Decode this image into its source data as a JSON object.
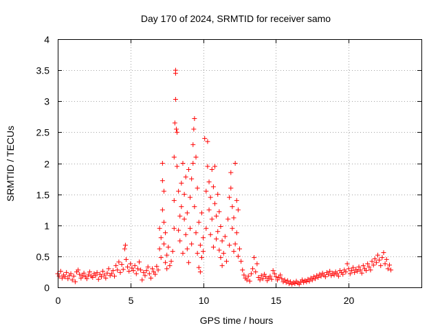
{
  "chart_data": {
    "type": "scatter",
    "title": "Day 170 of 2024, SRMTID for receiver samo",
    "xlabel": "GPS time / hours",
    "ylabel": "SRMTID / TECUs",
    "xlim": [
      0,
      25
    ],
    "ylim": [
      0,
      4
    ],
    "x_ticks": [
      0,
      5,
      10,
      15,
      20
    ],
    "x_tick_labels": [
      "0",
      "5",
      "10",
      "15",
      "20"
    ],
    "y_ticks": [
      0,
      0.5,
      1,
      1.5,
      2,
      2.5,
      3,
      3.5,
      4
    ],
    "y_tick_labels": [
      "0",
      "0.5",
      "1",
      "1.5",
      "2",
      "2.5",
      "3",
      "3.5",
      "4"
    ],
    "grid": true,
    "marker": "+",
    "color": "#ff0000",
    "series": [
      {
        "name": "SRMTID",
        "points": [
          [
            0.0,
            0.22
          ],
          [
            0.1,
            0.18
          ],
          [
            0.2,
            0.26
          ],
          [
            0.3,
            0.15
          ],
          [
            0.4,
            0.2
          ],
          [
            0.5,
            0.17
          ],
          [
            0.6,
            0.24
          ],
          [
            0.7,
            0.14
          ],
          [
            0.8,
            0.19
          ],
          [
            0.9,
            0.22
          ],
          [
            1.0,
            0.12
          ],
          [
            1.1,
            0.18
          ],
          [
            1.2,
            0.09
          ],
          [
            1.3,
            0.25
          ],
          [
            1.4,
            0.28
          ],
          [
            1.5,
            0.21
          ],
          [
            1.6,
            0.15
          ],
          [
            1.7,
            0.19
          ],
          [
            1.8,
            0.23
          ],
          [
            1.9,
            0.17
          ],
          [
            2.0,
            0.14
          ],
          [
            2.1,
            0.2
          ],
          [
            2.2,
            0.25
          ],
          [
            2.3,
            0.18
          ],
          [
            2.4,
            0.16
          ],
          [
            2.5,
            0.22
          ],
          [
            2.6,
            0.19
          ],
          [
            2.7,
            0.24
          ],
          [
            2.8,
            0.13
          ],
          [
            2.9,
            0.21
          ],
          [
            3.0,
            0.17
          ],
          [
            3.1,
            0.26
          ],
          [
            3.2,
            0.2
          ],
          [
            3.3,
            0.15
          ],
          [
            3.4,
            0.23
          ],
          [
            3.5,
            0.3
          ],
          [
            3.6,
            0.19
          ],
          [
            3.7,
            0.22
          ],
          [
            3.8,
            0.27
          ],
          [
            3.9,
            0.18
          ],
          [
            4.0,
            0.35
          ],
          [
            4.1,
            0.28
          ],
          [
            4.2,
            0.41
          ],
          [
            4.3,
            0.24
          ],
          [
            4.4,
            0.37
          ],
          [
            4.5,
            0.29
          ],
          [
            4.6,
            0.62
          ],
          [
            4.65,
            0.68
          ],
          [
            4.7,
            0.45
          ],
          [
            4.8,
            0.33
          ],
          [
            4.9,
            0.26
          ],
          [
            5.0,
            0.38
          ],
          [
            5.1,
            0.31
          ],
          [
            5.2,
            0.27
          ],
          [
            5.3,
            0.35
          ],
          [
            5.4,
            0.22
          ],
          [
            5.5,
            0.3
          ],
          [
            5.6,
            0.41
          ],
          [
            5.7,
            0.28
          ],
          [
            5.8,
            0.12
          ],
          [
            5.9,
            0.24
          ],
          [
            6.0,
            0.19
          ],
          [
            6.1,
            0.27
          ],
          [
            6.2,
            0.33
          ],
          [
            6.3,
            0.22
          ],
          [
            6.4,
            0.15
          ],
          [
            6.5,
            0.3
          ],
          [
            6.6,
            0.25
          ],
          [
            6.7,
            0.21
          ],
          [
            6.8,
            0.34
          ],
          [
            6.9,
            0.28
          ],
          [
            7.0,
            0.62
          ],
          [
            7.0,
            0.95
          ],
          [
            7.1,
            0.48
          ],
          [
            7.1,
            0.8
          ],
          [
            7.2,
            1.25
          ],
          [
            7.2,
            1.72
          ],
          [
            7.2,
            2.0
          ],
          [
            7.3,
            1.55
          ],
          [
            7.3,
            1.05
          ],
          [
            7.3,
            0.7
          ],
          [
            7.4,
            0.4
          ],
          [
            7.4,
            0.88
          ],
          [
            7.5,
            0.52
          ],
          [
            7.5,
            0.3
          ],
          [
            7.6,
            0.65
          ],
          [
            7.7,
            0.35
          ],
          [
            7.8,
            0.42
          ],
          [
            7.9,
            0.58
          ],
          [
            8.0,
            0.95
          ],
          [
            8.0,
            1.4
          ],
          [
            8.0,
            2.1
          ],
          [
            8.05,
            2.65
          ],
          [
            8.1,
            3.45
          ],
          [
            8.1,
            3.5
          ],
          [
            8.1,
            3.03
          ],
          [
            8.15,
            2.55
          ],
          [
            8.2,
            1.95
          ],
          [
            8.2,
            2.5
          ],
          [
            8.3,
            1.55
          ],
          [
            8.3,
            0.92
          ],
          [
            8.4,
            1.15
          ],
          [
            8.4,
            0.75
          ],
          [
            8.5,
            1.68
          ],
          [
            8.5,
            1.3
          ],
          [
            8.6,
            2.0
          ],
          [
            8.6,
            0.55
          ],
          [
            8.7,
            1.1
          ],
          [
            8.7,
            1.5
          ],
          [
            8.8,
            0.85
          ],
          [
            8.8,
            1.78
          ],
          [
            8.9,
            0.62
          ],
          [
            8.9,
            1.2
          ],
          [
            9.0,
            1.9
          ],
          [
            9.0,
            0.4
          ],
          [
            9.1,
            0.95
          ],
          [
            9.1,
            1.45
          ],
          [
            9.2,
            1.75
          ],
          [
            9.2,
            0.7
          ],
          [
            9.3,
            2.0
          ],
          [
            9.3,
            2.3
          ],
          [
            9.35,
            2.55
          ],
          [
            9.4,
            2.72
          ],
          [
            9.4,
            1.3
          ],
          [
            9.5,
            2.1
          ],
          [
            9.5,
            0.88
          ],
          [
            9.6,
            1.6
          ],
          [
            9.6,
            0.55
          ],
          [
            9.7,
            0.32
          ],
          [
            9.7,
            1.05
          ],
          [
            9.8,
            0.68
          ],
          [
            9.8,
            0.25
          ],
          [
            9.9,
            0.48
          ],
          [
            9.9,
            1.2
          ],
          [
            10.0,
            0.8
          ],
          [
            10.0,
            0.58
          ],
          [
            10.1,
            2.4
          ],
          [
            10.2,
            1.55
          ],
          [
            10.2,
            0.95
          ],
          [
            10.3,
            2.35
          ],
          [
            10.3,
            1.95
          ],
          [
            10.4,
            1.7
          ],
          [
            10.4,
            1.25
          ],
          [
            10.5,
            1.45
          ],
          [
            10.5,
            0.85
          ],
          [
            10.6,
            1.9
          ],
          [
            10.6,
            1.1
          ],
          [
            10.7,
            0.65
          ],
          [
            10.7,
            1.62
          ],
          [
            10.8,
            1.35
          ],
          [
            10.8,
            1.95
          ],
          [
            10.9,
            0.78
          ],
          [
            10.9,
            1.15
          ],
          [
            11.0,
            1.5
          ],
          [
            11.0,
            0.9
          ],
          [
            11.1,
            0.6
          ],
          [
            11.1,
            1.22
          ],
          [
            11.2,
            0.48
          ],
          [
            11.2,
            0.98
          ],
          [
            11.3,
            0.75
          ],
          [
            11.3,
            0.35
          ],
          [
            11.4,
            0.55
          ],
          [
            11.5,
            0.82
          ],
          [
            11.6,
            0.42
          ],
          [
            11.7,
            1.1
          ],
          [
            11.8,
            1.45
          ],
          [
            11.8,
            0.68
          ],
          [
            11.9,
            1.6
          ],
          [
            11.9,
            1.85
          ],
          [
            12.0,
            1.3
          ],
          [
            12.0,
            0.95
          ],
          [
            12.1,
            1.12
          ],
          [
            12.1,
            0.58
          ],
          [
            12.2,
            0.7
          ],
          [
            12.2,
            2.0
          ],
          [
            12.3,
            1.4
          ],
          [
            12.3,
            0.88
          ],
          [
            12.4,
            1.25
          ],
          [
            12.4,
            0.5
          ],
          [
            12.5,
            0.62
          ],
          [
            12.6,
            0.42
          ],
          [
            12.7,
            0.28
          ],
          [
            12.8,
            0.2
          ],
          [
            12.9,
            0.15
          ],
          [
            13.0,
            0.12
          ],
          [
            13.1,
            0.18
          ],
          [
            13.2,
            0.1
          ],
          [
            13.3,
            0.22
          ],
          [
            13.4,
            0.3
          ],
          [
            13.5,
            0.48
          ],
          [
            13.6,
            0.25
          ],
          [
            13.7,
            0.38
          ],
          [
            13.8,
            0.16
          ],
          [
            13.9,
            0.12
          ],
          [
            14.0,
            0.19
          ],
          [
            14.1,
            0.14
          ],
          [
            14.2,
            0.21
          ],
          [
            14.3,
            0.17
          ],
          [
            14.4,
            0.11
          ],
          [
            14.5,
            0.15
          ],
          [
            14.6,
            0.18
          ],
          [
            14.7,
            0.13
          ],
          [
            14.8,
            0.27
          ],
          [
            14.9,
            0.22
          ],
          [
            15.0,
            0.17
          ],
          [
            15.1,
            0.12
          ],
          [
            15.2,
            0.16
          ],
          [
            15.3,
            0.2
          ],
          [
            15.4,
            0.14
          ],
          [
            15.5,
            0.09
          ],
          [
            15.6,
            0.12
          ],
          [
            15.7,
            0.08
          ],
          [
            15.8,
            0.11
          ],
          [
            15.9,
            0.06
          ],
          [
            16.0,
            0.09
          ],
          [
            16.1,
            0.05
          ],
          [
            16.2,
            0.08
          ],
          [
            16.3,
            0.06
          ],
          [
            16.4,
            0.1
          ],
          [
            16.5,
            0.07
          ],
          [
            16.6,
            0.05
          ],
          [
            16.7,
            0.09
          ],
          [
            16.8,
            0.12
          ],
          [
            16.9,
            0.08
          ],
          [
            17.0,
            0.11
          ],
          [
            17.1,
            0.09
          ],
          [
            17.2,
            0.13
          ],
          [
            17.3,
            0.1
          ],
          [
            17.4,
            0.15
          ],
          [
            17.5,
            0.12
          ],
          [
            17.6,
            0.17
          ],
          [
            17.7,
            0.14
          ],
          [
            17.8,
            0.19
          ],
          [
            17.9,
            0.16
          ],
          [
            18.0,
            0.21
          ],
          [
            18.1,
            0.18
          ],
          [
            18.2,
            0.23
          ],
          [
            18.3,
            0.2
          ],
          [
            18.4,
            0.17
          ],
          [
            18.5,
            0.24
          ],
          [
            18.6,
            0.21
          ],
          [
            18.7,
            0.26
          ],
          [
            18.8,
            0.19
          ],
          [
            18.9,
            0.23
          ],
          [
            19.0,
            0.2
          ],
          [
            19.1,
            0.25
          ],
          [
            19.2,
            0.22
          ],
          [
            19.3,
            0.18
          ],
          [
            19.4,
            0.27
          ],
          [
            19.5,
            0.24
          ],
          [
            19.6,
            0.21
          ],
          [
            19.7,
            0.28
          ],
          [
            19.8,
            0.25
          ],
          [
            19.9,
            0.38
          ],
          [
            20.0,
            0.3
          ],
          [
            20.1,
            0.22
          ],
          [
            20.2,
            0.27
          ],
          [
            20.3,
            0.32
          ],
          [
            20.4,
            0.24
          ],
          [
            20.5,
            0.29
          ],
          [
            20.6,
            0.26
          ],
          [
            20.7,
            0.33
          ],
          [
            20.8,
            0.28
          ],
          [
            20.9,
            0.23
          ],
          [
            21.0,
            0.35
          ],
          [
            21.1,
            0.3
          ],
          [
            21.2,
            0.27
          ],
          [
            21.3,
            0.38
          ],
          [
            21.4,
            0.33
          ],
          [
            21.5,
            0.28
          ],
          [
            21.6,
            0.42
          ],
          [
            21.7,
            0.36
          ],
          [
            21.8,
            0.46
          ],
          [
            21.9,
            0.4
          ],
          [
            22.0,
            0.52
          ],
          [
            22.1,
            0.44
          ],
          [
            22.2,
            0.35
          ],
          [
            22.3,
            0.48
          ],
          [
            22.4,
            0.56
          ],
          [
            22.5,
            0.38
          ],
          [
            22.6,
            0.45
          ],
          [
            22.7,
            0.3
          ],
          [
            22.8,
            0.36
          ],
          [
            22.9,
            0.28
          ]
        ]
      }
    ]
  }
}
